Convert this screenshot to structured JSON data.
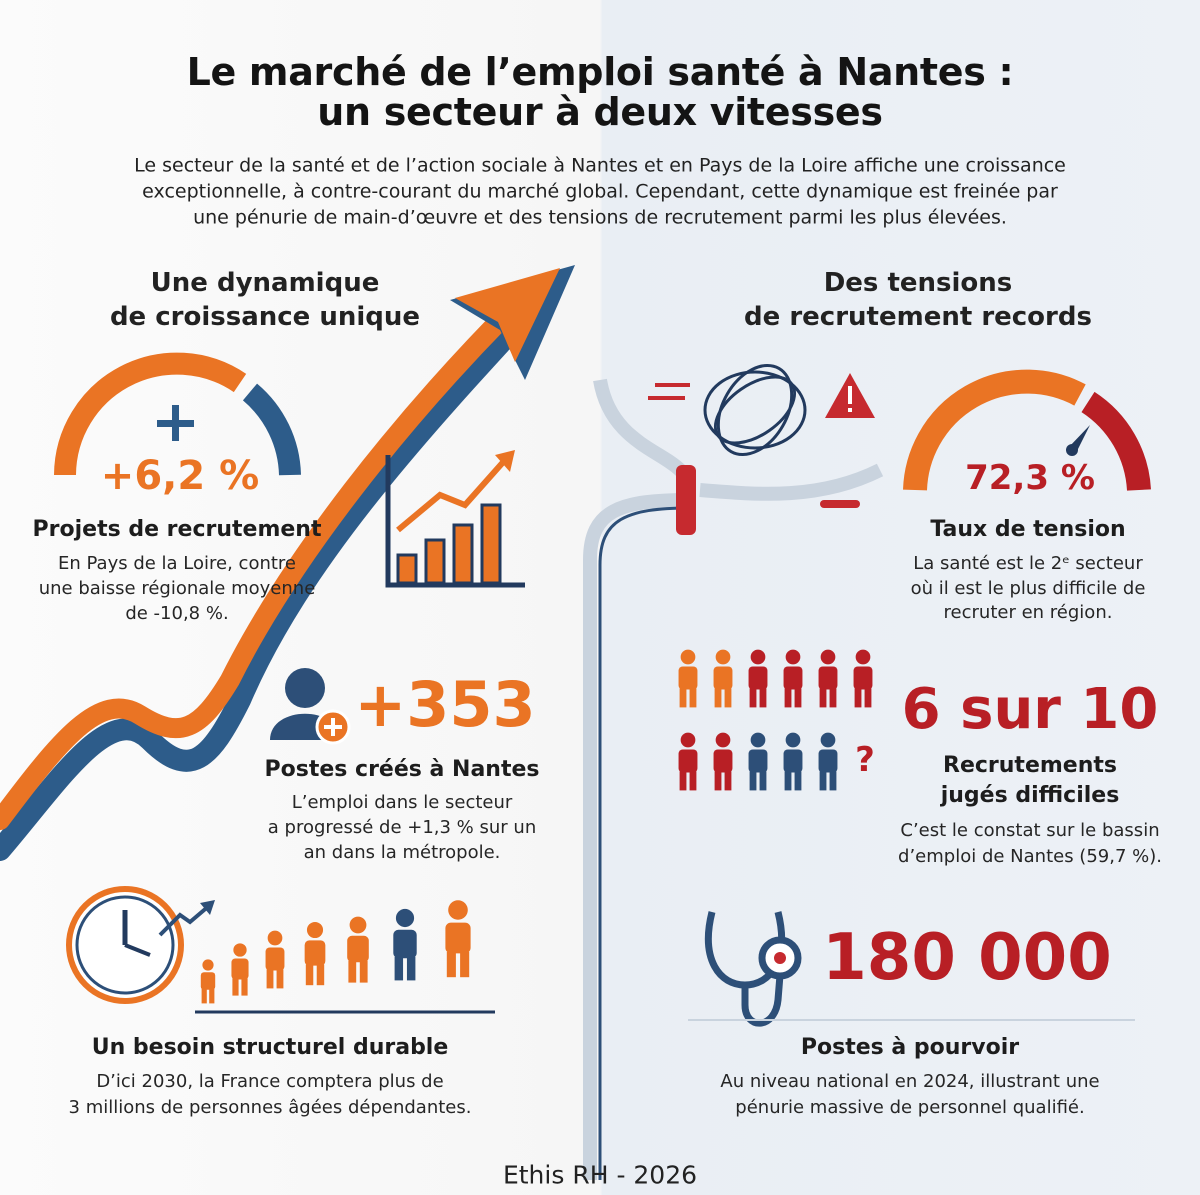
{
  "header": {
    "title": [
      "Le marché de l’emploi santé à Nantes :",
      "un secteur à deux vitesses"
    ],
    "intro": [
      "Le secteur de la santé et de l’action sociale à Nantes et en Pays de la Loire affiche une croissance",
      "exceptionnelle, à contre-courant du marché global. Cependant, cette dynamique est freinée par",
      "une pénurie de main-d’œuvre et des tensions de recrutement parmi les plus élevées."
    ]
  },
  "left": {
    "heading": [
      "Une dynamique",
      "de croissance unique"
    ],
    "items": [
      {
        "stat": "+6,2 %",
        "label": [
          "Projets de recrutement"
        ],
        "text": [
          "En Pays de la Loire, contre",
          "une baisse régionale moyenne",
          "de -10,8 %."
        ]
      },
      {
        "stat": "+353",
        "label": [
          "Postes créés à Nantes"
        ],
        "text": [
          "L’emploi dans le secteur",
          "a progressé de +1,3 % sur un",
          "an dans la métropole."
        ]
      },
      {
        "label": [
          "Un besoin structurel durable"
        ],
        "text": [
          "D’ici 2030, la France comptera plus de",
          "3 millions de personnes âgées dépendantes."
        ]
      }
    ]
  },
  "right": {
    "heading": [
      "Des tensions",
      "de recrutement records"
    ],
    "items": [
      {
        "stat": "72,3 %",
        "label": [
          "Taux de tension"
        ],
        "text": [
          "La santé est le 2ᵉ secteur",
          "où il est le plus difficile de",
          "recruter en région."
        ]
      },
      {
        "stat": "6 sur 10",
        "icon_mark": "?",
        "label": [
          "Recrutements",
          "jugés difficiles"
        ],
        "text": [
          "C’est le constat sur le bassin",
          "d’emploi de Nantes (59,7 %)."
        ]
      },
      {
        "stat": "180 000",
        "label": [
          "Postes à pourvoir"
        ],
        "text": [
          "Au niveau national en 2024, illustrant une",
          "pénurie massive de personnel qualifié."
        ]
      }
    ]
  },
  "footer": "Ethis RH - 2026"
}
